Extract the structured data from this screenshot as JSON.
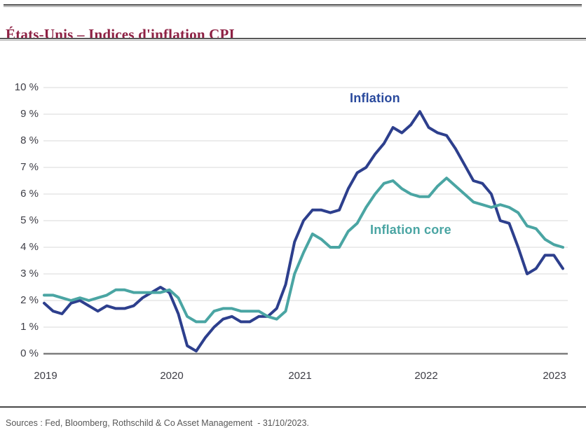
{
  "header": {
    "title": "États-Unis – Indices d'inflation CPI"
  },
  "chart_data": {
    "type": "line",
    "title": "États-Unis – Indices d'inflation CPI",
    "x_axis": {
      "tick_labels": [
        "2019",
        "2020",
        "2021",
        "2022",
        "2023"
      ],
      "cadence": "monthly",
      "range_note": "Dec 2018 – Oct 2023"
    },
    "y_axis": {
      "tick_labels": [
        "0 %",
        "1 %",
        "2 %",
        "3 %",
        "4 %",
        "5 %",
        "6 %",
        "7 %",
        "8 %",
        "9 %",
        "10 %"
      ],
      "min": 0,
      "max": 10,
      "unit": "%"
    },
    "grid": "horizontal",
    "legend": "inline-labels",
    "series": [
      {
        "name": "Inflation",
        "color": "#2d3f8d",
        "label_color": "#2a4a9d",
        "values": [
          1.9,
          1.6,
          1.5,
          1.9,
          2.0,
          1.8,
          1.6,
          1.8,
          1.7,
          1.7,
          1.8,
          2.1,
          2.3,
          2.5,
          2.3,
          1.5,
          0.3,
          0.1,
          0.6,
          1.0,
          1.3,
          1.4,
          1.2,
          1.2,
          1.4,
          1.4,
          1.7,
          2.6,
          4.2,
          5.0,
          5.4,
          5.4,
          5.3,
          5.4,
          6.2,
          6.8,
          7.0,
          7.5,
          7.9,
          8.5,
          8.3,
          8.6,
          9.1,
          8.5,
          8.3,
          8.2,
          7.7,
          7.1,
          6.5,
          6.4,
          6.0,
          5.0,
          4.9,
          4.0,
          3.0,
          3.2,
          3.7,
          3.7,
          3.2
        ]
      },
      {
        "name": "Inflation core",
        "color": "#4aa5a3",
        "label_color": "#4aa5a3",
        "values": [
          2.2,
          2.2,
          2.1,
          2.0,
          2.1,
          2.0,
          2.1,
          2.2,
          2.4,
          2.4,
          2.3,
          2.3,
          2.3,
          2.3,
          2.4,
          2.1,
          1.4,
          1.2,
          1.2,
          1.6,
          1.7,
          1.7,
          1.6,
          1.6,
          1.6,
          1.4,
          1.3,
          1.6,
          3.0,
          3.8,
          4.5,
          4.3,
          4.0,
          4.0,
          4.6,
          4.9,
          5.5,
          6.0,
          6.4,
          6.5,
          6.2,
          6.0,
          5.9,
          5.9,
          6.3,
          6.6,
          6.3,
          6.0,
          5.7,
          5.6,
          5.5,
          5.6,
          5.5,
          5.3,
          4.8,
          4.7,
          4.3,
          4.1,
          4.0
        ]
      }
    ]
  },
  "footer": {
    "sources": "Sources : Fed, Bloomberg, Rothschild & Co Asset Management  - 31/10/2023."
  }
}
